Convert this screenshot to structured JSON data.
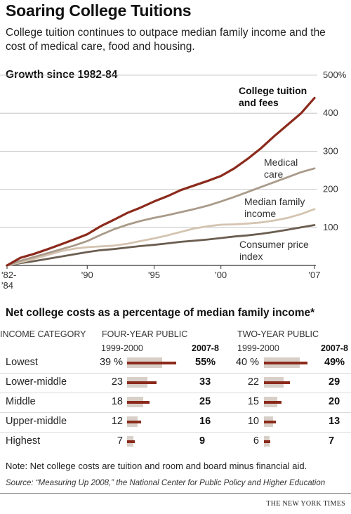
{
  "title": "Soaring College Tuitions",
  "subtitle": "College tuition continues to outpace median family income and the cost of medical care, food and housing.",
  "chart_title": "Growth since 1982-84",
  "chart_data": [
    {
      "type": "line",
      "title": "Growth since 1982-84",
      "x": [
        1984,
        1985,
        1986,
        1987,
        1988,
        1989,
        1990,
        1991,
        1992,
        1993,
        1994,
        1995,
        1996,
        1997,
        1998,
        1999,
        2000,
        2001,
        2002,
        2003,
        2004,
        2005,
        2006,
        2007
      ],
      "x_tick_labels": [
        {
          "x": 1984,
          "label": "'82-\n'84"
        },
        {
          "x": 1990,
          "label": "'90"
        },
        {
          "x": 1995,
          "label": "'95"
        },
        {
          "x": 2000,
          "label": "'00"
        },
        {
          "x": 2007,
          "label": "'07"
        }
      ],
      "y_ticks": [
        100,
        200,
        300,
        400,
        500
      ],
      "y_tick_labels": [
        "100",
        "200",
        "300",
        "400",
        "500%"
      ],
      "ylim": [
        0,
        500
      ],
      "grid": "horizontal",
      "series": [
        {
          "name": "College tuition and fees",
          "color": "#8b2a1c",
          "values": [
            0,
            20,
            30,
            42,
            55,
            68,
            82,
            103,
            120,
            138,
            152,
            168,
            182,
            198,
            210,
            222,
            235,
            255,
            280,
            308,
            340,
            370,
            400,
            440
          ]
        },
        {
          "name": "Medical care",
          "color": "#a99a8a",
          "values": [
            0,
            12,
            22,
            32,
            42,
            52,
            64,
            80,
            95,
            107,
            117,
            125,
            132,
            140,
            148,
            157,
            168,
            180,
            193,
            206,
            219,
            232,
            245,
            255
          ]
        },
        {
          "name": "Median family income",
          "color": "#d4c4b0",
          "values": [
            0,
            8,
            17,
            27,
            37,
            44,
            48,
            50,
            52,
            57,
            64,
            71,
            79,
            88,
            97,
            103,
            107,
            108,
            110,
            113,
            118,
            125,
            135,
            148
          ]
        },
        {
          "name": "Consumer price index",
          "color": "#6b5e50",
          "values": [
            0,
            6,
            11,
            17,
            23,
            29,
            35,
            40,
            43,
            47,
            51,
            54,
            58,
            62,
            65,
            68,
            72,
            76,
            79,
            83,
            88,
            94,
            100,
            106
          ]
        }
      ],
      "series_labels": [
        "College tuition\nand fees",
        "Medical\ncare",
        "Median family\nincome",
        "Consumer price\nindex"
      ]
    },
    {
      "type": "table",
      "title": "Net college costs as a percentage of median family income*",
      "columns": [
        "INCOME CATEGORY",
        "FOUR-YEAR PUBLIC",
        "TWO-YEAR PUBLIC"
      ],
      "sub_columns": [
        "1999-2000",
        "2007-8"
      ],
      "rows": [
        {
          "category": "Lowest",
          "four_year_1999": 39,
          "four_year_2007": 55,
          "two_year_1999": 40,
          "two_year_2007": 49,
          "four_year_1999_label": "39 %",
          "four_year_2007_label": "55%",
          "two_year_1999_label": "40 %",
          "two_year_2007_label": "49%"
        },
        {
          "category": "Lower-middle",
          "four_year_1999": 23,
          "four_year_2007": 33,
          "two_year_1999": 22,
          "two_year_2007": 29,
          "four_year_1999_label": "23",
          "four_year_2007_label": "33",
          "two_year_1999_label": "22",
          "two_year_2007_label": "29"
        },
        {
          "category": "Middle",
          "four_year_1999": 18,
          "four_year_2007": 25,
          "two_year_1999": 15,
          "two_year_2007": 20,
          "four_year_1999_label": "18",
          "four_year_2007_label": "25",
          "two_year_1999_label": "15",
          "two_year_2007_label": "20"
        },
        {
          "category": "Upper-middle",
          "four_year_1999": 12,
          "four_year_2007": 16,
          "two_year_1999": 10,
          "two_year_2007": 13,
          "four_year_1999_label": "12",
          "four_year_2007_label": "16",
          "two_year_1999_label": "10",
          "two_year_2007_label": "13"
        },
        {
          "category": "Highest",
          "four_year_1999": 7,
          "four_year_2007": 9,
          "two_year_1999": 6,
          "two_year_2007": 7,
          "four_year_1999_label": "7",
          "four_year_2007_label": "9",
          "two_year_1999_label": "6",
          "two_year_2007_label": "7"
        }
      ],
      "colors": {
        "bar_1999": "#d8d0c8",
        "bar_2007": "#8b2a1c"
      }
    }
  ],
  "table_title": "Net college costs as a percentage of median family income*",
  "note": "Note: Net college costs are tuition and room and board minus financial aid.",
  "source": "Source: “Measuring Up 2008,” the National Center for Public Policy and Higher Education",
  "credit": "THE NEW YORK TIMES"
}
